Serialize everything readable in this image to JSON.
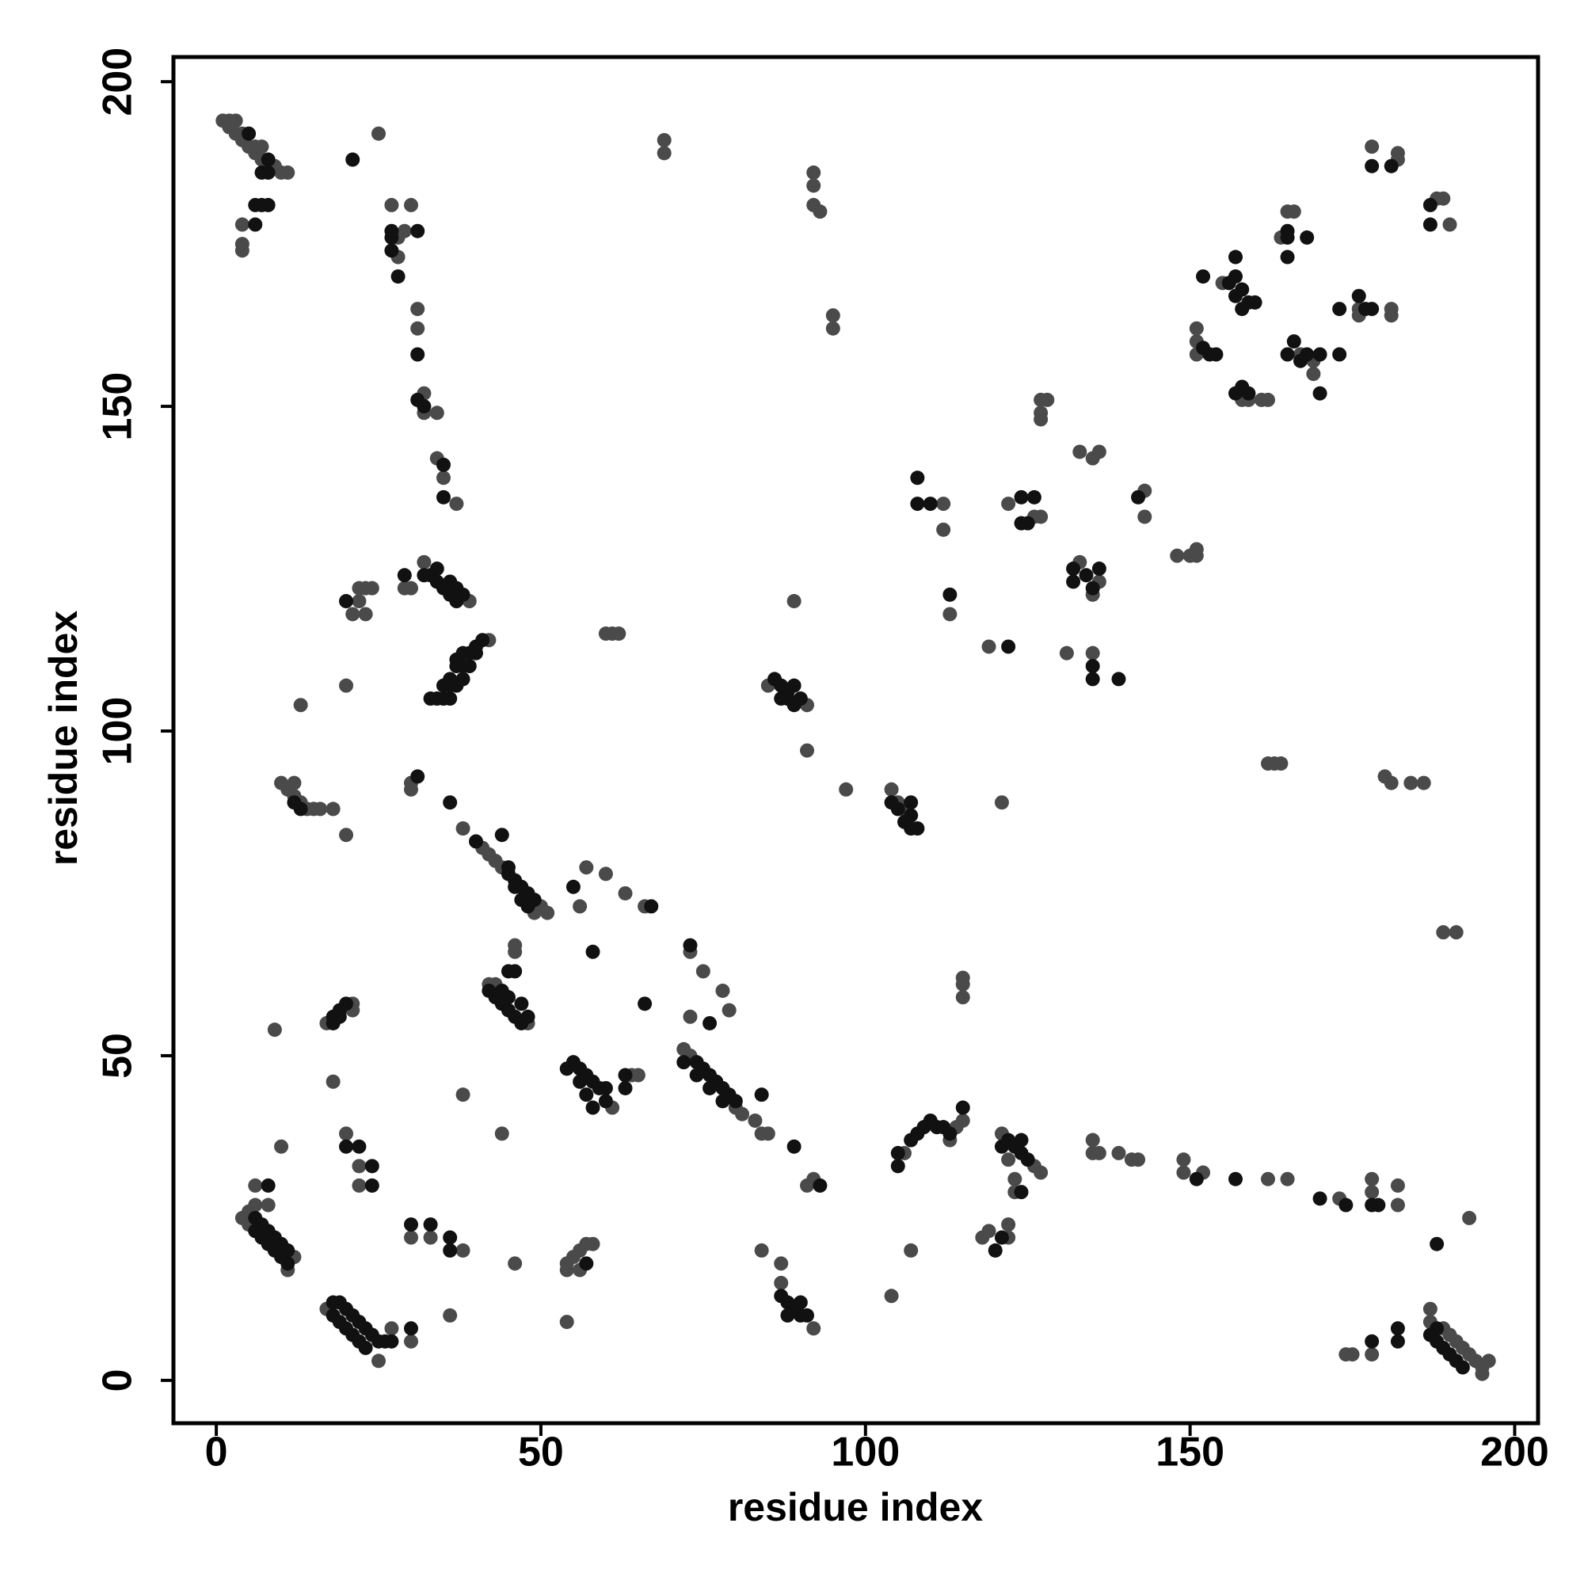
{
  "chart_data": {
    "type": "scatter",
    "xlabel": "residue index",
    "ylabel": "residue index",
    "xlim": [
      -6.6,
      203.6
    ],
    "ylim": [
      -6.6,
      203.8
    ],
    "xticks": [
      0,
      50,
      100,
      150,
      200
    ],
    "yticks": [
      0,
      50,
      100,
      150,
      200
    ],
    "grid": false,
    "series": [
      {
        "color": "#4a4a4a",
        "x": [
          1,
          2,
          3,
          2,
          3,
          4,
          4,
          5,
          6,
          7,
          6,
          7,
          8,
          9,
          10,
          11,
          4,
          4,
          4,
          25,
          69,
          69,
          92,
          92,
          92,
          93,
          95,
          95,
          27,
          30,
          28,
          29,
          28,
          31,
          31,
          32,
          32,
          34,
          34,
          35,
          37,
          29,
          30,
          32,
          39,
          21,
          22,
          22,
          23,
          24,
          23,
          42,
          60,
          61,
          62,
          20,
          13,
          85,
          91,
          91,
          89,
          10,
          12,
          11,
          12,
          13,
          14,
          15,
          16,
          18,
          20,
          30,
          30,
          38,
          41,
          42,
          43,
          44,
          49,
          50,
          51,
          56,
          57,
          60,
          63,
          66,
          46,
          46,
          42,
          43,
          48,
          73,
          75,
          78,
          79,
          73,
          72,
          73,
          80,
          81,
          83,
          84,
          85,
          61,
          64,
          65,
          17,
          21,
          21,
          9,
          18,
          38,
          44,
          10,
          20,
          22,
          22,
          6,
          6,
          8,
          4,
          5,
          5,
          11,
          12,
          17,
          25,
          27,
          30,
          30,
          33,
          38,
          36,
          46,
          54,
          55,
          56,
          57,
          58,
          54,
          56,
          54,
          84,
          87,
          87,
          92,
          91,
          92,
          104,
          107,
          106,
          113,
          114,
          115,
          118,
          119,
          122,
          122,
          121,
          122,
          123,
          123,
          126,
          127,
          135,
          136,
          135,
          139,
          141,
          142,
          149,
          149,
          152,
          162,
          165,
          173,
          178,
          178,
          182,
          182,
          193,
          174,
          175,
          178,
          187,
          187,
          189,
          190,
          191,
          192,
          193,
          194,
          195,
          196,
          195,
          104,
          105,
          106,
          97,
          121,
          115,
          115,
          115,
          112,
          112,
          113,
          119,
          122,
          126,
          127,
          127,
          128,
          127,
          127,
          133,
          135,
          136,
          133,
          136,
          135,
          131,
          135,
          143,
          143,
          148,
          150,
          151,
          151,
          162,
          163,
          164,
          151,
          151,
          151,
          155,
          158,
          159,
          161,
          162,
          164,
          165,
          166,
          167,
          169,
          169,
          176,
          181,
          181,
          176,
          178,
          182,
          182,
          188,
          189,
          190,
          180,
          181,
          184,
          186,
          189,
          191
        ],
        "values": [
          194,
          194,
          194,
          193,
          192,
          192,
          191,
          190,
          190,
          190,
          189,
          188,
          187,
          187,
          186,
          186,
          178,
          175,
          174,
          192,
          191,
          189,
          186,
          184,
          181,
          180,
          164,
          162,
          181,
          181,
          176,
          177,
          173,
          165,
          162,
          152,
          149,
          149,
          142,
          139,
          135,
          122,
          122,
          126,
          120,
          118,
          120,
          122,
          122,
          122,
          118,
          114,
          115,
          115,
          115,
          107,
          104,
          107,
          104,
          97,
          120,
          92,
          92,
          91,
          90,
          89,
          88,
          88,
          88,
          88,
          84,
          92,
          91,
          85,
          82,
          81,
          80,
          79,
          72,
          73,
          72,
          73,
          79,
          78,
          75,
          73,
          67,
          66,
          61,
          61,
          55,
          66,
          63,
          60,
          57,
          56,
          51,
          50,
          42,
          41,
          40,
          38,
          38,
          42,
          47,
          47,
          55,
          57,
          58,
          54,
          46,
          44,
          38,
          36,
          38,
          33,
          30,
          30,
          27,
          27,
          25,
          24,
          26,
          17,
          19,
          11,
          3,
          8,
          6,
          22,
          22,
          20,
          10,
          18,
          18,
          19,
          20,
          21,
          21,
          17,
          17,
          9,
          20,
          18,
          15,
          8,
          30,
          31,
          13,
          20,
          35,
          37,
          39,
          40,
          22,
          23,
          24,
          22,
          38,
          34,
          29,
          31,
          33,
          32,
          37,
          35,
          35,
          35,
          34,
          34,
          34,
          32,
          32,
          31,
          31,
          28,
          31,
          29,
          30,
          27,
          25,
          4,
          4,
          4,
          11,
          9,
          8,
          7,
          6,
          5,
          4,
          3,
          2,
          3,
          1,
          91,
          89,
          88,
          91,
          89,
          62,
          59,
          61,
          135,
          131,
          118,
          113,
          135,
          133,
          133,
          151,
          151,
          149,
          148,
          143,
          142,
          143,
          126,
          123,
          121,
          112,
          112,
          137,
          133,
          127,
          127,
          128,
          127,
          95,
          95,
          95,
          158,
          160,
          162,
          169,
          151,
          151,
          151,
          151,
          176,
          180,
          180,
          158,
          157,
          155,
          165,
          165,
          164,
          164,
          190,
          188,
          189,
          182,
          182,
          178,
          93,
          92,
          92,
          92,
          69,
          69
        ]
      },
      {
        "color": "#111111",
        "x": [
          5,
          8,
          7,
          8,
          7,
          8,
          6,
          6,
          21,
          27,
          27,
          31,
          27,
          28,
          31,
          31,
          32,
          35,
          35,
          29,
          32,
          33,
          34,
          34,
          35,
          36,
          37,
          38,
          36,
          37,
          20,
          33,
          34,
          35,
          36,
          35,
          36,
          37,
          38,
          37,
          38,
          39,
          39,
          40,
          40,
          41,
          38,
          37,
          36,
          86,
          87,
          88,
          89,
          88,
          89,
          90,
          87,
          13,
          12,
          31,
          36,
          40,
          45,
          46,
          47,
          48,
          49,
          44,
          45,
          46,
          47,
          48,
          55,
          67,
          58,
          45,
          46,
          42,
          43,
          44,
          45,
          46,
          47,
          48,
          44,
          45,
          47,
          66,
          73,
          76,
          74,
          75,
          76,
          77,
          78,
          79,
          80,
          72,
          74,
          76,
          78,
          84,
          54,
          55,
          56,
          57,
          58,
          59,
          60,
          56,
          57,
          58,
          60,
          63,
          63,
          18,
          19,
          20,
          18,
          19,
          20,
          22,
          24,
          24,
          8,
          6,
          7,
          8,
          9,
          10,
          11,
          6,
          7,
          8,
          9,
          10,
          11,
          18,
          19,
          20,
          21,
          22,
          23,
          24,
          25,
          26,
          18,
          19,
          20,
          21,
          22,
          23,
          30,
          27,
          30,
          33,
          36,
          36,
          57,
          87,
          88,
          89,
          90,
          91,
          88,
          90,
          89,
          93,
          105,
          107,
          108,
          109,
          110,
          111,
          112,
          113,
          115,
          105,
          120,
          121,
          121,
          122,
          123,
          124,
          124,
          125,
          124,
          151,
          157,
          170,
          174,
          178,
          179,
          188,
          178,
          182,
          182,
          188,
          187,
          188,
          189,
          190,
          191,
          192,
          107,
          108,
          104,
          105,
          106,
          107,
          107,
          108,
          108,
          110,
          113,
          122,
          124,
          125,
          124,
          126,
          132,
          132,
          134,
          135,
          136,
          135,
          135,
          139,
          142,
          152,
          153,
          154,
          152,
          156,
          157,
          157,
          158,
          158,
          159,
          160,
          157,
          157,
          159,
          158,
          165,
          165,
          165,
          168,
          165,
          166,
          167,
          168,
          170,
          170,
          173,
          173,
          176,
          177,
          178,
          178,
          181,
          187,
          187
        ],
        "values": [
          192,
          188,
          186,
          186,
          181,
          181,
          181,
          178,
          188,
          177,
          176,
          177,
          174,
          170,
          158,
          151,
          150,
          141,
          136,
          124,
          124,
          124,
          125,
          123,
          122,
          123,
          122,
          121,
          121,
          120,
          120,
          105,
          105,
          105,
          105,
          107,
          108,
          107,
          108,
          110,
          110,
          110,
          112,
          112,
          113,
          114,
          112,
          111,
          107,
          108,
          107,
          106,
          107,
          105,
          104,
          105,
          105,
          88,
          89,
          93,
          89,
          83,
          78,
          77,
          76,
          75,
          74,
          84,
          79,
          76,
          74,
          73,
          76,
          73,
          66,
          63,
          63,
          60,
          59,
          58,
          57,
          56,
          55,
          56,
          60,
          59,
          58,
          58,
          67,
          55,
          49,
          48,
          47,
          46,
          45,
          44,
          43,
          49,
          47,
          45,
          43,
          44,
          48,
          49,
          48,
          47,
          46,
          45,
          43,
          46,
          44,
          42,
          45,
          47,
          45,
          56,
          57,
          58,
          55,
          56,
          36,
          36,
          33,
          30,
          30,
          23,
          22,
          21,
          20,
          19,
          18,
          25,
          24,
          23,
          22,
          21,
          20,
          12,
          12,
          11,
          10,
          9,
          8,
          7,
          6,
          6,
          10,
          9,
          8,
          7,
          6,
          5,
          8,
          6,
          24,
          24,
          22,
          20,
          18,
          13,
          12,
          11,
          10,
          10,
          10,
          12,
          36,
          30,
          35,
          37,
          38,
          39,
          40,
          39,
          39,
          38,
          42,
          33,
          20,
          22,
          36,
          37,
          36,
          35,
          37,
          34,
          29,
          31,
          31,
          28,
          27,
          27,
          27,
          21,
          6,
          8,
          6,
          8,
          7,
          6,
          5,
          4,
          3,
          2,
          87,
          85,
          89,
          88,
          86,
          89,
          85,
          139,
          135,
          135,
          121,
          113,
          136,
          132,
          132,
          136,
          125,
          123,
          124,
          122,
          125,
          110,
          108,
          108,
          136,
          159,
          158,
          158,
          170,
          169,
          170,
          167,
          168,
          165,
          166,
          166,
          173,
          152,
          152,
          153,
          177,
          176,
          173,
          176,
          158,
          160,
          157,
          158,
          158,
          152,
          158,
          165,
          167,
          165,
          165,
          187,
          187,
          181,
          178
        ]
      }
    ]
  }
}
